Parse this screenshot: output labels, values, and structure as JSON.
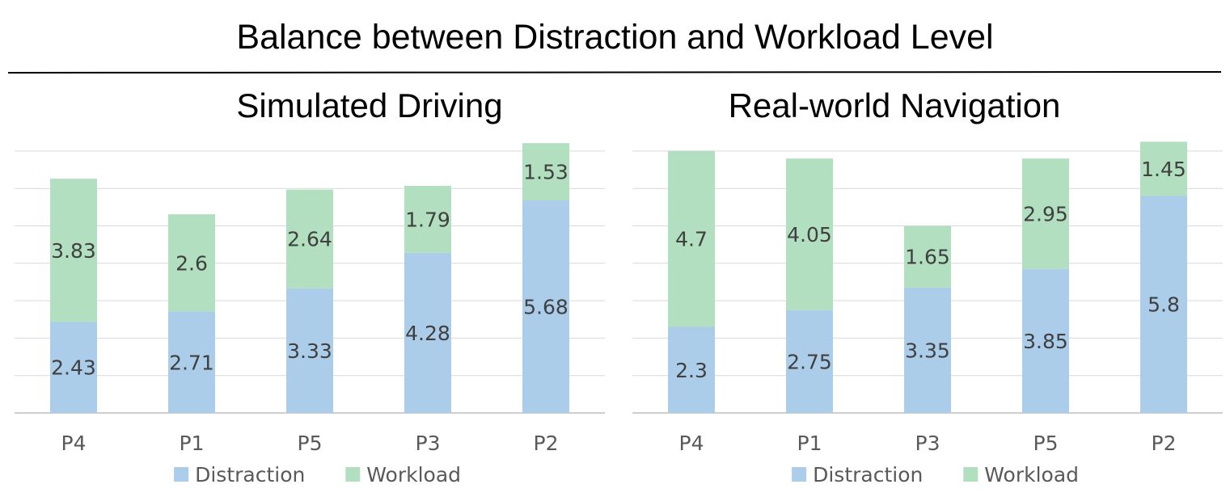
{
  "title": "Balance between Distraction and Workload Level",
  "colors": {
    "distraction": "#abcdea",
    "workload": "#b2dfc0",
    "grid": "#d9d9d9",
    "axis": "#bfbfbf"
  },
  "chart_data": [
    {
      "type": "bar",
      "stacked": true,
      "title": "Simulated Driving",
      "categories": [
        "P4",
        "P1",
        "P5",
        "P3",
        "P2"
      ],
      "series": [
        {
          "name": "Distraction",
          "values": [
            2.43,
            2.71,
            3.33,
            4.28,
            5.68
          ]
        },
        {
          "name": "Workload",
          "values": [
            3.83,
            2.6,
            2.64,
            1.79,
            1.53
          ]
        }
      ],
      "ylim": [
        0,
        7
      ],
      "grid": true,
      "legend": "bottom"
    },
    {
      "type": "bar",
      "stacked": true,
      "title": "Real-world Navigation",
      "categories": [
        "P4",
        "P1",
        "P3",
        "P5",
        "P2"
      ],
      "series": [
        {
          "name": "Distraction",
          "values": [
            2.3,
            2.75,
            3.35,
            3.85,
            5.8
          ]
        },
        {
          "name": "Workload",
          "values": [
            4.7,
            4.05,
            1.65,
            2.95,
            1.45
          ]
        }
      ],
      "ylim": [
        0,
        7
      ],
      "grid": true,
      "legend": "bottom"
    }
  ]
}
